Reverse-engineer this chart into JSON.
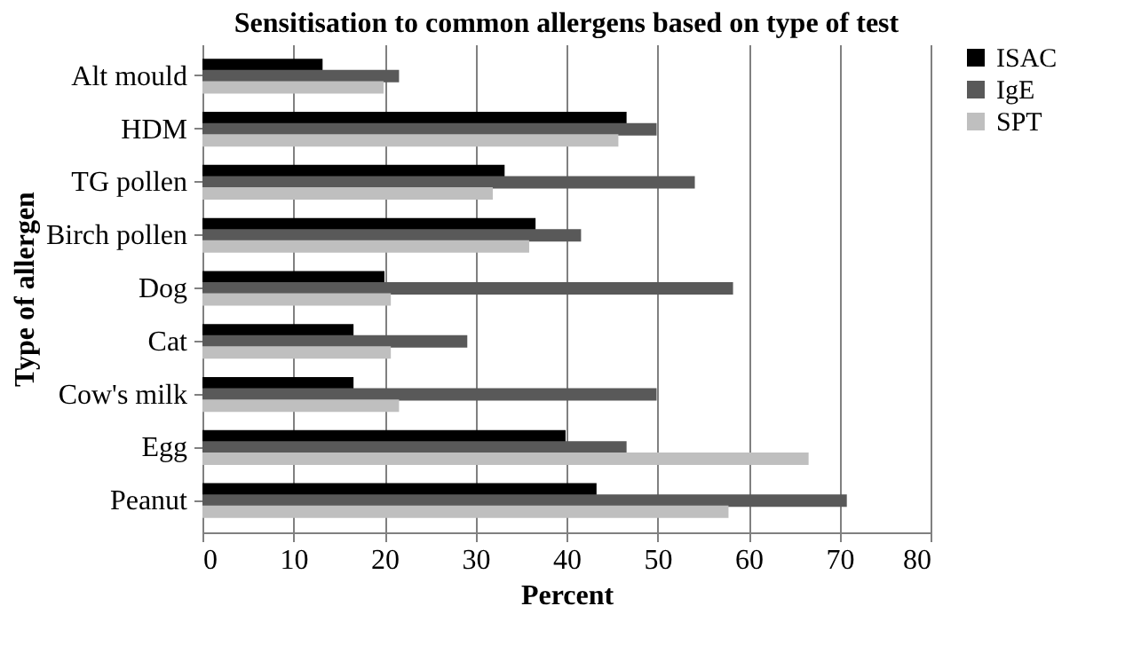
{
  "chart_data": {
    "type": "bar",
    "orientation": "horizontal",
    "title": "Sensitisation to common allergens based on type of test",
    "xlabel": "Percent",
    "ylabel": "Type of allergen",
    "categories": [
      "Alt mould",
      "HDM",
      "TG pollen",
      "Birch pollen",
      "Dog",
      "Cat",
      "Cow's milk",
      "Egg",
      "Peanut"
    ],
    "series": [
      {
        "name": "ISAC",
        "color": "#000000",
        "values": [
          13.2,
          46.6,
          33.2,
          36.6,
          20.0,
          16.6,
          16.6,
          39.9,
          43.3
        ]
      },
      {
        "name": "IgE",
        "color": "#595959",
        "values": [
          21.6,
          49.9,
          54.1,
          41.6,
          58.3,
          29.1,
          49.9,
          46.6,
          70.8
        ]
      },
      {
        "name": "SPT",
        "color": "#bfbfbf",
        "values": [
          19.9,
          45.7,
          31.9,
          35.9,
          20.7,
          20.7,
          21.6,
          66.6,
          57.8
        ]
      }
    ],
    "xlim": [
      0,
      80
    ],
    "xticks": [
      0,
      10,
      20,
      30,
      40,
      50,
      60,
      70,
      80
    ],
    "grid": "x",
    "legend": "right"
  }
}
